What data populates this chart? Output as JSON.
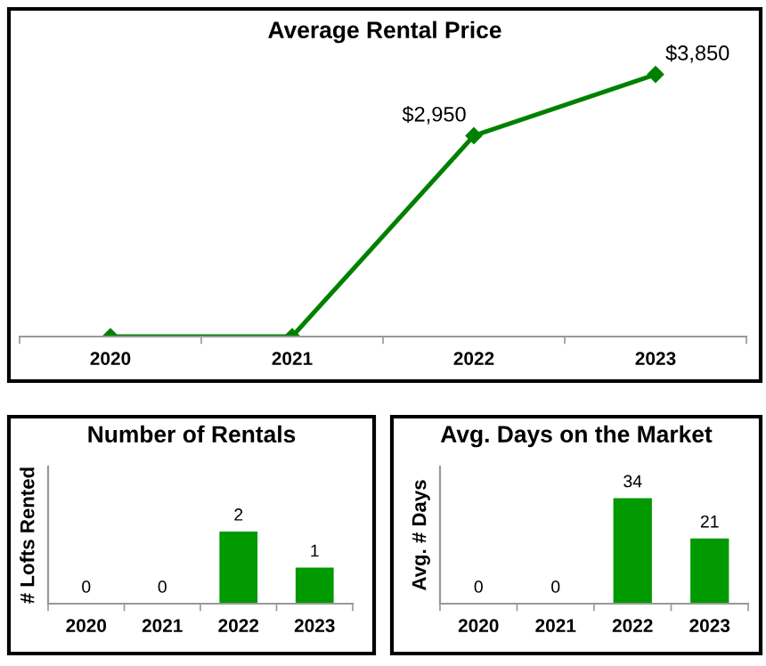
{
  "chart_data": [
    {
      "type": "line",
      "title": "Average Rental Price",
      "categories": [
        "2020",
        "2021",
        "2022",
        "2023"
      ],
      "series": [
        {
          "color": "#008000",
          "values": [
            0,
            0,
            2950,
            3850
          ],
          "value_labels": [
            null,
            null,
            "$2,950",
            "$3,850"
          ]
        }
      ],
      "marker": "diamond",
      "tick_labels": "x",
      "grid": false,
      "legend": false
    },
    {
      "type": "bar",
      "title": "Number of Rentals",
      "ylabel": "# Lofts Rented",
      "categories": [
        "2020",
        "2021",
        "2022",
        "2023"
      ],
      "series": [
        {
          "color": "#009900",
          "values": [
            0,
            0,
            2,
            1
          ]
        }
      ],
      "data_labels": true,
      "tick_labels": "x",
      "grid": false,
      "legend": false
    },
    {
      "type": "bar",
      "title": "Avg. Days on the Market",
      "ylabel": "Avg. # Days",
      "categories": [
        "2020",
        "2021",
        "2022",
        "2023"
      ],
      "series": [
        {
          "color": "#009900",
          "values": [
            0,
            0,
            34,
            21
          ]
        }
      ],
      "data_labels": true,
      "tick_labels": "x",
      "grid": false,
      "legend": false
    }
  ]
}
